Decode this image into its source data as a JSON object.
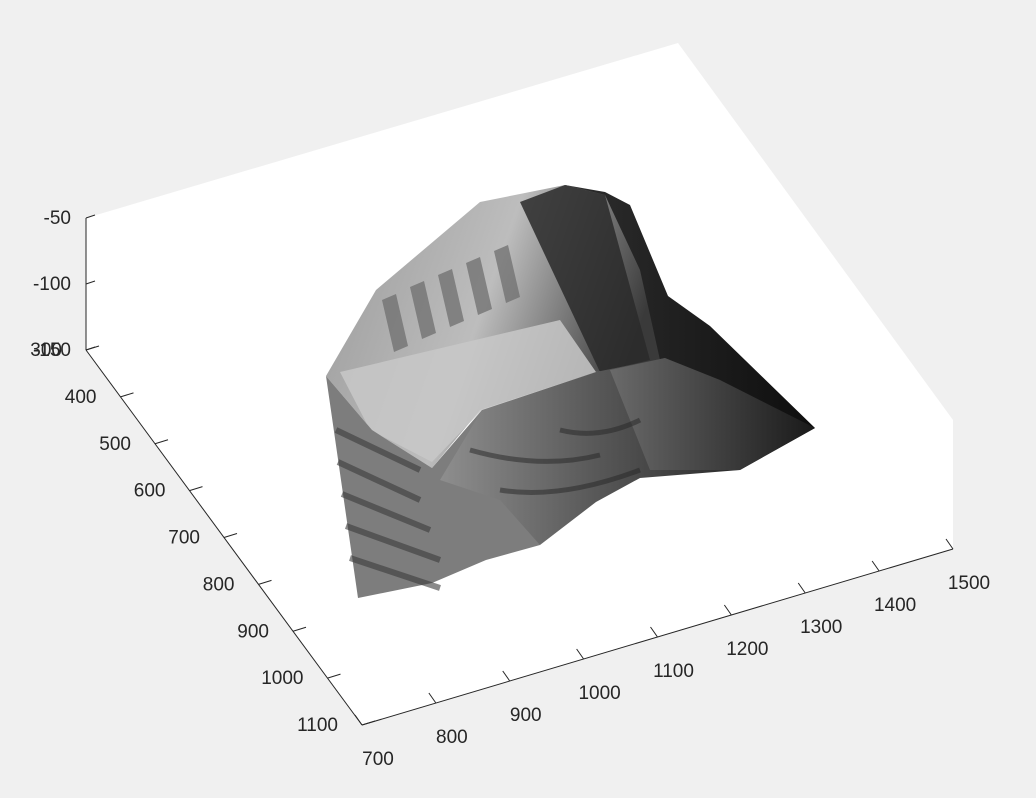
{
  "chart_data": {
    "type": "surface",
    "title": "",
    "xlabel": "",
    "ylabel": "",
    "zlabel": "",
    "x_ticks": [
      700,
      800,
      900,
      1000,
      1100,
      1200,
      1300,
      1400,
      1500
    ],
    "y_ticks": [
      300,
      400,
      500,
      600,
      700,
      800,
      900,
      1000,
      1100
    ],
    "z_ticks": [
      -50,
      -100,
      -150
    ],
    "xlim": [
      700,
      1500
    ],
    "ylim": [
      300,
      1100
    ],
    "zlim": [
      -150,
      -50
    ],
    "colormap": "gray",
    "grid": false,
    "colors": {
      "figure_background": "#f0f0f0",
      "axes_background": "#ffffff",
      "axis_color": "#262626"
    }
  }
}
